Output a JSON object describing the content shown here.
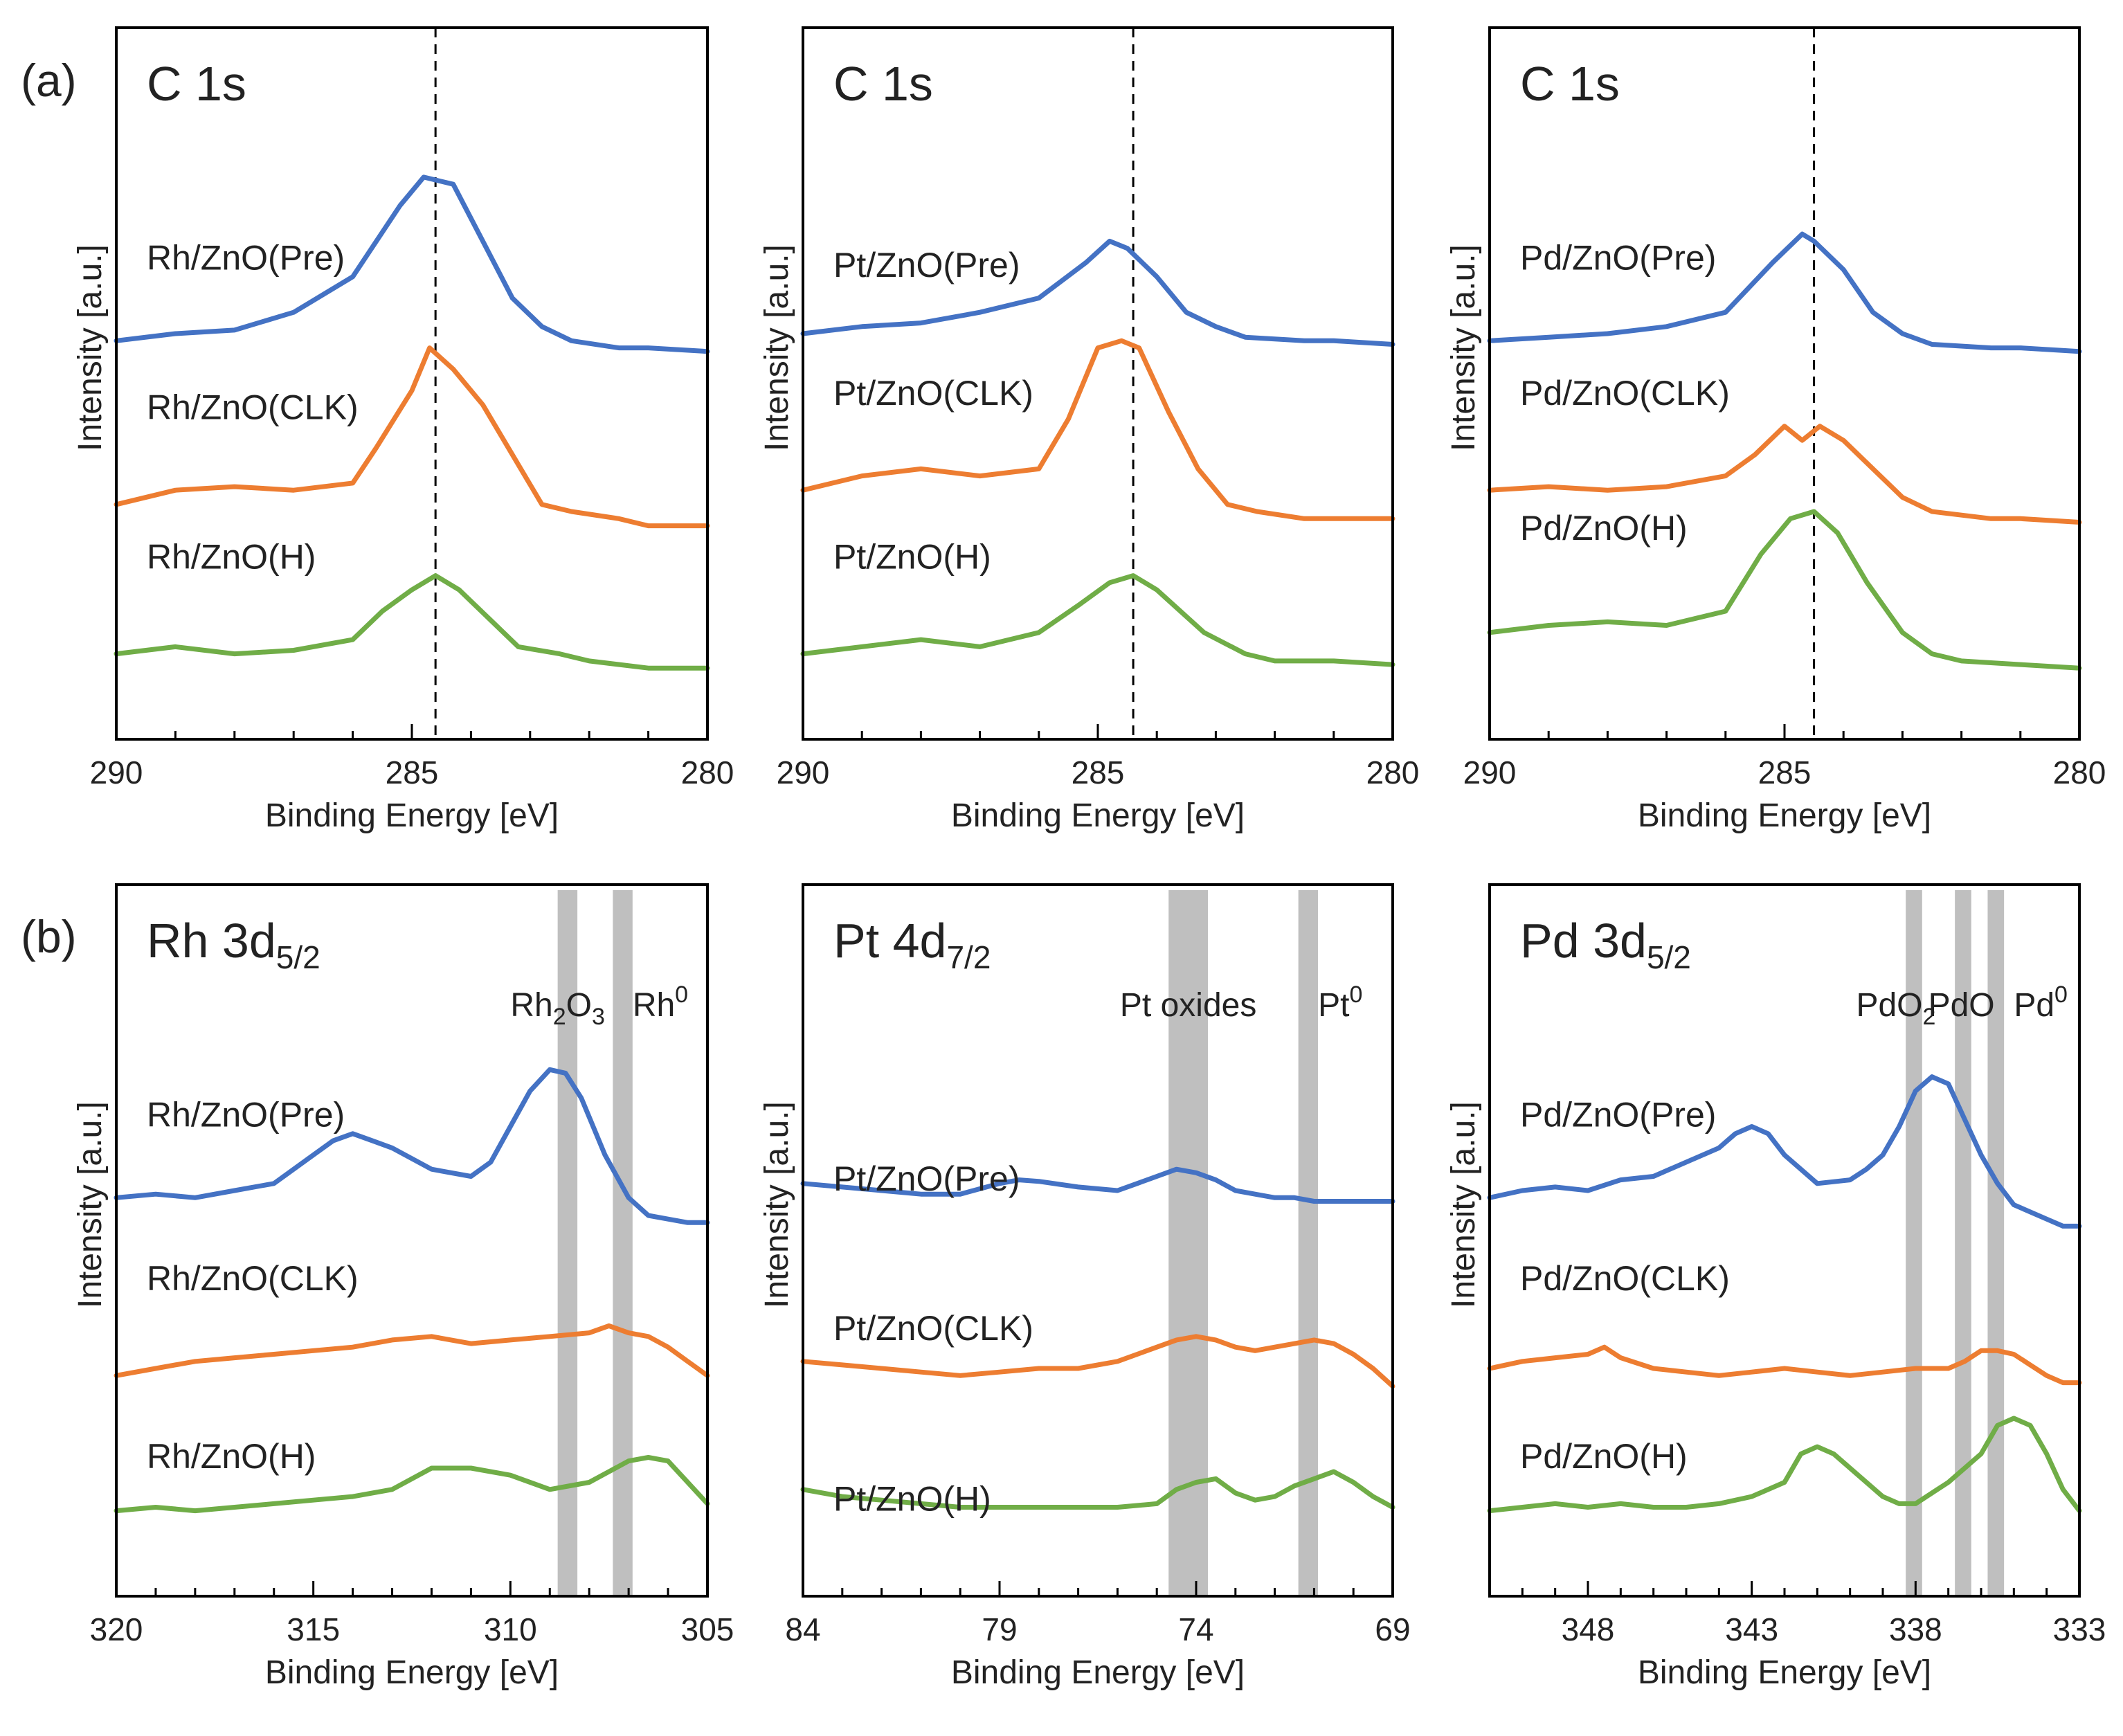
{
  "row_labels": [
    "(a)",
    "(b)"
  ],
  "colors": {
    "Pre": "#4472C4",
    "CLK": "#ED7D31",
    "H": "#70AD47",
    "band": "#bfbfbf",
    "axis": "#000000"
  },
  "chart_data": [
    {
      "type": "line",
      "row": "a",
      "title": "C 1s",
      "title_sub": "",
      "xlabel": "Binding Energy [eV]",
      "ylabel": "Intensity [a.u.]",
      "xlim": [
        290,
        280
      ],
      "xticks": [
        290,
        285,
        280
      ],
      "tick_labels": [
        "290",
        "285",
        "280"
      ],
      "ref_line": 284.6,
      "bands": [],
      "band_labels": [],
      "series": [
        {
          "key": "Pre",
          "name": "Rh/ZnO(Pre)",
          "x": [
            290,
            289,
            288,
            287,
            286,
            285.2,
            284.8,
            284.3,
            283.8,
            283.3,
            282.8,
            282.3,
            281.5,
            281,
            280
          ],
          "y": [
            0.56,
            0.57,
            0.575,
            0.6,
            0.65,
            0.75,
            0.79,
            0.78,
            0.7,
            0.62,
            0.58,
            0.56,
            0.55,
            0.55,
            0.545
          ]
        },
        {
          "key": "CLK",
          "name": "Rh/ZnO(CLK)",
          "x": [
            290,
            289,
            288,
            287,
            286,
            285.6,
            285,
            284.7,
            284.3,
            283.8,
            283.3,
            282.8,
            282.3,
            281.5,
            281,
            280
          ],
          "y": [
            0.33,
            0.35,
            0.355,
            0.35,
            0.36,
            0.41,
            0.49,
            0.55,
            0.52,
            0.47,
            0.4,
            0.33,
            0.32,
            0.31,
            0.3,
            0.3
          ]
        },
        {
          "key": "H",
          "name": "Rh/ZnO(H)",
          "x": [
            290,
            289,
            288,
            287,
            286,
            285.5,
            285,
            284.6,
            284.2,
            283.7,
            283.2,
            282.5,
            282,
            281,
            280
          ],
          "y": [
            0.12,
            0.13,
            0.12,
            0.125,
            0.14,
            0.18,
            0.21,
            0.23,
            0.21,
            0.17,
            0.13,
            0.12,
            0.11,
            0.1,
            0.1
          ]
        }
      ]
    },
    {
      "type": "line",
      "row": "a",
      "title": "C 1s",
      "title_sub": "",
      "xlabel": "Binding Energy [eV]",
      "ylabel": "Intensity [a.u.]",
      "xlim": [
        290,
        280
      ],
      "xticks": [
        290,
        285,
        280
      ],
      "tick_labels": [
        "290",
        "285",
        "280"
      ],
      "ref_line": 284.4,
      "bands": [],
      "band_labels": [],
      "series": [
        {
          "key": "Pre",
          "name": "Pt/ZnO(Pre)",
          "x": [
            290,
            289,
            288,
            287,
            286,
            285.2,
            284.8,
            284.5,
            284,
            283.5,
            283,
            282.5,
            281.5,
            281,
            280
          ],
          "y": [
            0.57,
            0.58,
            0.585,
            0.6,
            0.62,
            0.67,
            0.7,
            0.69,
            0.65,
            0.6,
            0.58,
            0.565,
            0.56,
            0.56,
            0.555
          ]
        },
        {
          "key": "CLK",
          "name": "Pt/ZnO(CLK)",
          "x": [
            290,
            289,
            288,
            287,
            286,
            285.5,
            285,
            284.6,
            284.3,
            283.8,
            283.3,
            282.8,
            282.3,
            281.5,
            281,
            280
          ],
          "y": [
            0.35,
            0.37,
            0.38,
            0.37,
            0.38,
            0.45,
            0.55,
            0.56,
            0.55,
            0.46,
            0.38,
            0.33,
            0.32,
            0.31,
            0.31,
            0.31
          ]
        },
        {
          "key": "H",
          "name": "Pt/ZnO(H)",
          "x": [
            290,
            289,
            288,
            287,
            286,
            285.3,
            284.8,
            284.4,
            284,
            283.6,
            283.2,
            282.5,
            282,
            281,
            280
          ],
          "y": [
            0.12,
            0.13,
            0.14,
            0.13,
            0.15,
            0.19,
            0.22,
            0.23,
            0.21,
            0.18,
            0.15,
            0.12,
            0.11,
            0.11,
            0.105
          ]
        }
      ]
    },
    {
      "type": "line",
      "row": "a",
      "title": "C 1s",
      "title_sub": "",
      "xlabel": "Binding Energy [eV]",
      "ylabel": "Intensity [a.u.]",
      "xlim": [
        290,
        280
      ],
      "xticks": [
        290,
        285,
        280
      ],
      "tick_labels": [
        "290",
        "285",
        "280"
      ],
      "ref_line": 284.5,
      "bands": [],
      "band_labels": [],
      "series": [
        {
          "key": "Pre",
          "name": "Pd/ZnO(Pre)",
          "x": [
            290,
            289,
            288,
            287,
            286,
            285.2,
            284.7,
            284.5,
            284,
            283.5,
            283,
            282.5,
            281.5,
            281,
            280
          ],
          "y": [
            0.56,
            0.565,
            0.57,
            0.58,
            0.6,
            0.67,
            0.71,
            0.7,
            0.66,
            0.6,
            0.57,
            0.555,
            0.55,
            0.55,
            0.545
          ]
        },
        {
          "key": "CLK",
          "name": "Pd/ZnO(CLK)",
          "x": [
            290,
            289,
            288,
            287,
            286,
            285.5,
            285,
            284.7,
            284.4,
            284,
            283.5,
            283,
            282.5,
            281.5,
            281,
            280
          ],
          "y": [
            0.35,
            0.355,
            0.35,
            0.355,
            0.37,
            0.4,
            0.44,
            0.42,
            0.44,
            0.42,
            0.38,
            0.34,
            0.32,
            0.31,
            0.31,
            0.305
          ]
        },
        {
          "key": "H",
          "name": "Pd/ZnO(H)",
          "x": [
            290,
            289,
            288,
            287,
            286,
            285.4,
            284.9,
            284.5,
            284.1,
            283.6,
            283,
            282.5,
            282,
            281,
            280
          ],
          "y": [
            0.15,
            0.16,
            0.165,
            0.16,
            0.18,
            0.26,
            0.31,
            0.32,
            0.29,
            0.22,
            0.15,
            0.12,
            0.11,
            0.105,
            0.1
          ]
        }
      ]
    },
    {
      "type": "line",
      "row": "b",
      "title": "Rh 3d",
      "title_sub": "5/2",
      "xlabel": "Binding Energy [eV]",
      "ylabel": "Intensity [a.u.]",
      "xlim": [
        320,
        305
      ],
      "xticks": [
        320,
        315,
        310,
        305
      ],
      "tick_labels": [
        "320",
        "315",
        "310",
        "305"
      ],
      "ref_line": null,
      "bands": [
        [
          308.3,
          308.8
        ],
        [
          306.9,
          307.4
        ]
      ],
      "band_labels": [
        {
          "text": "Rh",
          "sub": "2",
          "text2": "O",
          "sub2": "3",
          "sup": "",
          "x": 308.8
        },
        {
          "text": "Rh",
          "sub": "",
          "text2": "",
          "sub2": "",
          "sup": "0",
          "x": 306.9
        }
      ],
      "series": [
        {
          "key": "Pre",
          "name": "Rh/ZnO(Pre)",
          "x": [
            320,
            319,
            318,
            317,
            316,
            315,
            314.5,
            314,
            313.5,
            313,
            312,
            311,
            310.5,
            310,
            309.5,
            309,
            308.6,
            308.2,
            307.6,
            307,
            306.5,
            306,
            305.5,
            305
          ],
          "y": [
            0.56,
            0.565,
            0.56,
            0.57,
            0.58,
            0.62,
            0.64,
            0.65,
            0.64,
            0.63,
            0.6,
            0.59,
            0.61,
            0.66,
            0.71,
            0.74,
            0.735,
            0.7,
            0.62,
            0.56,
            0.535,
            0.53,
            0.525,
            0.525
          ]
        },
        {
          "key": "CLK",
          "name": "Rh/ZnO(CLK)",
          "x": [
            320,
            319,
            318,
            317,
            316,
            315,
            314,
            313,
            312,
            311,
            310,
            309,
            308,
            307.5,
            307,
            306.5,
            306,
            305.5,
            305
          ],
          "y": [
            0.31,
            0.32,
            0.33,
            0.335,
            0.34,
            0.345,
            0.35,
            0.36,
            0.365,
            0.355,
            0.36,
            0.365,
            0.37,
            0.38,
            0.37,
            0.365,
            0.35,
            0.33,
            0.31
          ]
        },
        {
          "key": "H",
          "name": "Rh/ZnO(H)",
          "x": [
            320,
            319,
            318,
            317,
            316,
            315,
            314,
            313,
            312,
            311,
            310,
            309,
            308,
            307.5,
            307,
            306.5,
            306,
            305.5,
            305
          ],
          "y": [
            0.12,
            0.125,
            0.12,
            0.125,
            0.13,
            0.135,
            0.14,
            0.15,
            0.18,
            0.18,
            0.17,
            0.15,
            0.16,
            0.175,
            0.19,
            0.195,
            0.19,
            0.16,
            0.13
          ]
        }
      ]
    },
    {
      "type": "line",
      "row": "b",
      "title": "Pt 4d",
      "title_sub": "7/2",
      "xlabel": "Binding Energy [eV]",
      "ylabel": "Intensity [a.u.]",
      "xlim": [
        84,
        69
      ],
      "xticks": [
        84,
        79,
        74,
        69
      ],
      "tick_labels": [
        "84",
        "79",
        "74",
        "69"
      ],
      "ref_line": null,
      "bands": [
        [
          73.7,
          74.7
        ],
        [
          70.9,
          71.4
        ]
      ],
      "band_labels": [
        {
          "text": "Pt oxides",
          "sub": "",
          "text2": "",
          "sub2": "",
          "sup": "",
          "x": 74.2
        },
        {
          "text": "Pt",
          "sub": "",
          "text2": "",
          "sub2": "",
          "sup": "0",
          "x": 70.9
        }
      ],
      "series": [
        {
          "key": "Pre",
          "name": "Pt/ZnO(Pre)",
          "x": [
            84,
            83,
            82,
            81,
            80,
            79,
            78.5,
            78,
            77,
            76,
            75.5,
            75,
            74.5,
            74,
            73.5,
            73,
            72.5,
            72,
            71.5,
            71,
            70.5,
            70,
            69
          ],
          "y": [
            0.58,
            0.575,
            0.57,
            0.565,
            0.565,
            0.58,
            0.585,
            0.583,
            0.575,
            0.57,
            0.58,
            0.59,
            0.6,
            0.595,
            0.585,
            0.57,
            0.565,
            0.56,
            0.56,
            0.555,
            0.555,
            0.555,
            0.555
          ]
        },
        {
          "key": "CLK",
          "name": "Pt/ZnO(CLK)",
          "x": [
            84,
            83,
            82,
            81,
            80,
            79,
            78,
            77,
            76,
            75,
            74.5,
            74,
            73.5,
            73,
            72.5,
            72,
            71.5,
            71,
            70.5,
            70,
            69.5,
            69
          ],
          "y": [
            0.33,
            0.325,
            0.32,
            0.315,
            0.31,
            0.315,
            0.32,
            0.32,
            0.33,
            0.35,
            0.36,
            0.365,
            0.36,
            0.35,
            0.345,
            0.35,
            0.355,
            0.36,
            0.355,
            0.34,
            0.32,
            0.295
          ]
        },
        {
          "key": "H",
          "name": "Pt/ZnO(H)",
          "x": [
            84,
            83,
            82,
            81,
            80,
            79,
            78,
            77,
            76,
            75,
            74.5,
            74,
            73.5,
            73,
            72.5,
            72,
            71.5,
            71,
            70.5,
            70,
            69.5,
            69
          ],
          "y": [
            0.15,
            0.14,
            0.135,
            0.13,
            0.125,
            0.125,
            0.125,
            0.125,
            0.125,
            0.13,
            0.15,
            0.16,
            0.165,
            0.145,
            0.135,
            0.14,
            0.155,
            0.165,
            0.175,
            0.16,
            0.14,
            0.125
          ]
        }
      ]
    },
    {
      "type": "line",
      "row": "b",
      "title": "Pd 3d",
      "title_sub": "5/2",
      "xlabel": "Binding Energy [eV]",
      "ylabel": "Intensity [a.u.]",
      "xlim": [
        351,
        333
      ],
      "xticks": [
        348,
        343,
        338,
        333
      ],
      "tick_labels": [
        "348",
        "343",
        "338",
        "333"
      ],
      "ref_line": null,
      "bands": [
        [
          337.8,
          338.3
        ],
        [
          336.3,
          336.8
        ],
        [
          335.3,
          335.8
        ]
      ],
      "band_labels": [
        {
          "text": "PdO",
          "sub": "2",
          "text2": "",
          "sub2": "",
          "sup": "",
          "x": 338.6
        },
        {
          "text": "PdO",
          "sub": "",
          "text2": "",
          "sub2": "",
          "sup": "",
          "x": 336.6
        },
        {
          "text": "Pd",
          "sub": "",
          "text2": "",
          "sub2": "",
          "sup": "0",
          "x": 335
        }
      ],
      "series": [
        {
          "key": "Pre",
          "name": "Pd/ZnO(Pre)",
          "x": [
            351,
            350,
            349,
            348,
            347,
            346,
            345,
            344,
            343.5,
            343,
            342.5,
            342,
            341,
            340,
            339.5,
            339,
            338.5,
            338,
            337.5,
            337,
            336.5,
            336,
            335.5,
            335,
            334,
            333.5,
            333
          ],
          "y": [
            0.56,
            0.57,
            0.575,
            0.57,
            0.585,
            0.59,
            0.61,
            0.63,
            0.65,
            0.66,
            0.65,
            0.62,
            0.58,
            0.585,
            0.6,
            0.62,
            0.66,
            0.71,
            0.73,
            0.72,
            0.67,
            0.62,
            0.58,
            0.55,
            0.53,
            0.52,
            0.52
          ]
        },
        {
          "key": "CLK",
          "name": "Pd/ZnO(CLK)",
          "x": [
            351,
            350,
            349,
            348,
            347.5,
            347,
            346,
            345,
            344,
            343,
            342,
            341,
            340,
            339,
            338,
            337,
            336.5,
            336,
            335.5,
            335,
            334.5,
            334,
            333.5,
            333
          ],
          "y": [
            0.32,
            0.33,
            0.335,
            0.34,
            0.35,
            0.335,
            0.32,
            0.315,
            0.31,
            0.315,
            0.32,
            0.315,
            0.31,
            0.315,
            0.32,
            0.32,
            0.33,
            0.345,
            0.345,
            0.34,
            0.325,
            0.31,
            0.3,
            0.3
          ]
        },
        {
          "key": "H",
          "name": "Pd/ZnO(H)",
          "x": [
            351,
            350,
            349,
            348,
            347,
            346,
            345,
            344,
            343,
            342,
            341.5,
            341,
            340.5,
            340,
            339,
            338.5,
            338,
            337.5,
            337,
            336.5,
            336,
            335.5,
            335,
            334.5,
            334,
            333.5,
            333
          ],
          "y": [
            0.12,
            0.125,
            0.13,
            0.125,
            0.13,
            0.125,
            0.125,
            0.13,
            0.14,
            0.16,
            0.2,
            0.21,
            0.2,
            0.18,
            0.14,
            0.13,
            0.13,
            0.145,
            0.16,
            0.18,
            0.2,
            0.24,
            0.25,
            0.24,
            0.2,
            0.15,
            0.12
          ]
        }
      ]
    }
  ]
}
